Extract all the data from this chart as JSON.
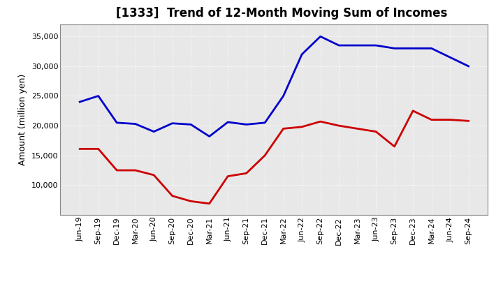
{
  "title": "[1333]  Trend of 12-Month Moving Sum of Incomes",
  "ylabel": "Amount (million yen)",
  "x_labels": [
    "Jun-19",
    "Sep-19",
    "Dec-19",
    "Mar-20",
    "Jun-20",
    "Sep-20",
    "Dec-20",
    "Mar-21",
    "Jun-21",
    "Sep-21",
    "Dec-21",
    "Mar-22",
    "Jun-22",
    "Sep-22",
    "Dec-22",
    "Mar-23",
    "Jun-23",
    "Sep-23",
    "Dec-23",
    "Mar-24",
    "Jun-24",
    "Sep-24"
  ],
  "ordinary_income": [
    24000,
    25000,
    20500,
    20300,
    19000,
    20400,
    20200,
    18200,
    20600,
    20200,
    20500,
    25000,
    32000,
    35000,
    33500,
    33500,
    33500,
    33000,
    33000,
    33000,
    31500,
    30000
  ],
  "net_income": [
    16100,
    16100,
    12500,
    12500,
    11700,
    8200,
    7300,
    6900,
    11500,
    12000,
    15000,
    19500,
    19800,
    20700,
    20000,
    19500,
    19000,
    16500,
    22500,
    21000,
    21000,
    20800
  ],
  "ordinary_color": "#0000cc",
  "net_color": "#cc0000",
  "ylim_min": 5000,
  "ylim_max": 37000,
  "yticks": [
    10000,
    15000,
    20000,
    25000,
    30000,
    35000
  ],
  "plot_bg_color": "#e8e8e8",
  "fig_bg_color": "#ffffff",
  "grid_color": "#ffffff",
  "title_fontsize": 12,
  "ylabel_fontsize": 9,
  "tick_fontsize": 8,
  "legend_fontsize": 9,
  "linewidth": 2.0
}
